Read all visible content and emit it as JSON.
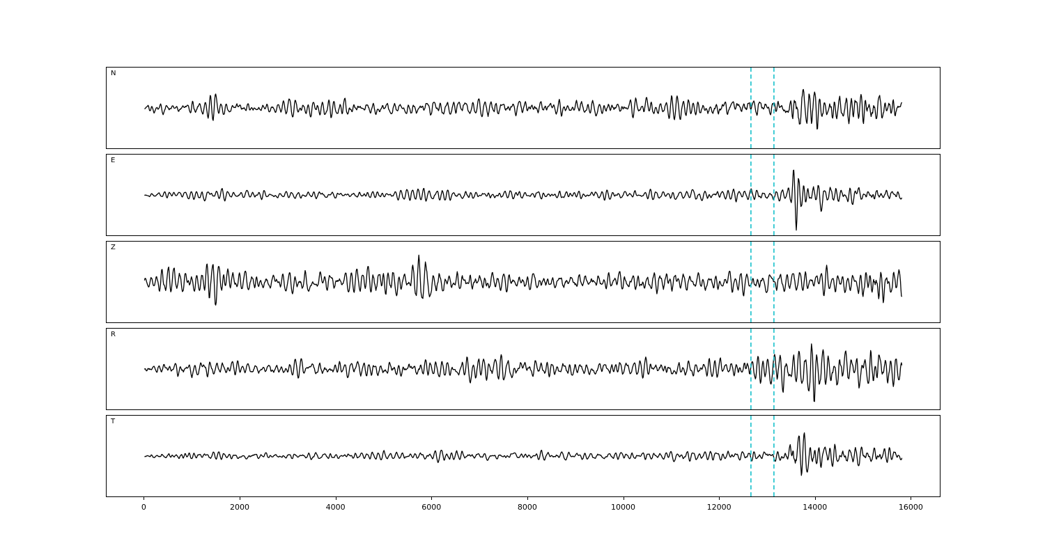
{
  "chart_data": {
    "type": "line",
    "title": "",
    "xlabel": "",
    "ylabel": "",
    "grid": false,
    "legend": "none",
    "background_color": "#ffffff",
    "line_color": "#000000",
    "xlim": [
      -790,
      16590
    ],
    "x_range": [
      0,
      15800
    ],
    "x_ticks": [
      "0",
      "2000",
      "4000",
      "6000",
      "8000",
      "10000",
      "12000",
      "14000",
      "16000"
    ],
    "x_tick_values": [
      0,
      2000,
      4000,
      6000,
      8000,
      10000,
      12000,
      14000,
      16000
    ],
    "pick_lines": {
      "x": [
        12650,
        13130
      ],
      "color": "#15c0cb",
      "style": "dashed"
    },
    "panels": [
      {
        "label": "N",
        "seed": 101,
        "envelope": [
          [
            0,
            8
          ],
          [
            900,
            9
          ],
          [
            1100,
            13
          ],
          [
            1350,
            15
          ],
          [
            1600,
            10
          ],
          [
            2500,
            9
          ],
          [
            4000,
            12
          ],
          [
            4200,
            15
          ],
          [
            4500,
            10
          ],
          [
            5500,
            11
          ],
          [
            6200,
            13
          ],
          [
            7000,
            12
          ],
          [
            7200,
            17
          ],
          [
            7500,
            11
          ],
          [
            8500,
            12
          ],
          [
            9500,
            11
          ],
          [
            10500,
            12
          ],
          [
            11500,
            12
          ],
          [
            12300,
            14
          ],
          [
            12700,
            17
          ],
          [
            13000,
            13
          ],
          [
            13400,
            15
          ],
          [
            13550,
            30
          ],
          [
            13680,
            52
          ],
          [
            13850,
            28
          ],
          [
            14200,
            25
          ],
          [
            14700,
            26
          ],
          [
            15200,
            23
          ],
          [
            15600,
            20
          ],
          [
            15800,
            14
          ]
        ]
      },
      {
        "label": "E",
        "seed": 202,
        "envelope": [
          [
            0,
            5
          ],
          [
            1000,
            6
          ],
          [
            1250,
            10
          ],
          [
            1500,
            6
          ],
          [
            3000,
            6
          ],
          [
            5000,
            6
          ],
          [
            6200,
            8
          ],
          [
            7000,
            7
          ],
          [
            8000,
            7
          ],
          [
            9000,
            7
          ],
          [
            10000,
            7
          ],
          [
            11000,
            8
          ],
          [
            12000,
            8
          ],
          [
            12600,
            10
          ],
          [
            13000,
            9
          ],
          [
            13400,
            10
          ],
          [
            13600,
            46
          ],
          [
            13750,
            20
          ],
          [
            14000,
            16
          ],
          [
            14500,
            15
          ],
          [
            15000,
            13
          ],
          [
            15500,
            12
          ],
          [
            15800,
            9
          ]
        ]
      },
      {
        "label": "Z",
        "seed": 303,
        "envelope": [
          [
            0,
            12
          ],
          [
            300,
            16
          ],
          [
            500,
            20
          ],
          [
            800,
            16
          ],
          [
            1200,
            14
          ],
          [
            1380,
            42
          ],
          [
            1550,
            26
          ],
          [
            1800,
            15
          ],
          [
            2500,
            14
          ],
          [
            3500,
            15
          ],
          [
            4500,
            15
          ],
          [
            5100,
            24
          ],
          [
            5400,
            16
          ],
          [
            5800,
            40
          ],
          [
            6100,
            26
          ],
          [
            6400,
            18
          ],
          [
            7000,
            15
          ],
          [
            8000,
            15
          ],
          [
            9000,
            14
          ],
          [
            10000,
            15
          ],
          [
            10800,
            20
          ],
          [
            11300,
            16
          ],
          [
            12000,
            14
          ],
          [
            12700,
            15
          ],
          [
            13500,
            17
          ],
          [
            14000,
            15
          ],
          [
            14700,
            14
          ],
          [
            15200,
            30
          ],
          [
            15500,
            26
          ],
          [
            15800,
            22
          ]
        ]
      },
      {
        "label": "R",
        "seed": 404,
        "envelope": [
          [
            0,
            9
          ],
          [
            1000,
            11
          ],
          [
            1250,
            14
          ],
          [
            1600,
            10
          ],
          [
            2500,
            10
          ],
          [
            3600,
            14
          ],
          [
            4000,
            11
          ],
          [
            5000,
            12
          ],
          [
            5600,
            16
          ],
          [
            6300,
            14
          ],
          [
            7000,
            16
          ],
          [
            7600,
            18
          ],
          [
            8000,
            14
          ],
          [
            9000,
            12
          ],
          [
            10000,
            13
          ],
          [
            11000,
            14
          ],
          [
            12000,
            13
          ],
          [
            12600,
            20
          ],
          [
            13000,
            16
          ],
          [
            13300,
            24
          ],
          [
            13700,
            26
          ],
          [
            13950,
            48
          ],
          [
            14200,
            28
          ],
          [
            14700,
            26
          ],
          [
            15200,
            27
          ],
          [
            15600,
            22
          ],
          [
            15800,
            16
          ]
        ]
      },
      {
        "label": "T",
        "seed": 505,
        "envelope": [
          [
            0,
            5
          ],
          [
            2000,
            6
          ],
          [
            4000,
            5
          ],
          [
            6000,
            6
          ],
          [
            6400,
            8
          ],
          [
            7000,
            6
          ],
          [
            9000,
            6
          ],
          [
            11000,
            6
          ],
          [
            12000,
            7
          ],
          [
            12800,
            7
          ],
          [
            13400,
            8
          ],
          [
            13620,
            44
          ],
          [
            13800,
            22
          ],
          [
            14200,
            18
          ],
          [
            14800,
            16
          ],
          [
            15300,
            13
          ],
          [
            15800,
            9
          ]
        ]
      }
    ]
  }
}
